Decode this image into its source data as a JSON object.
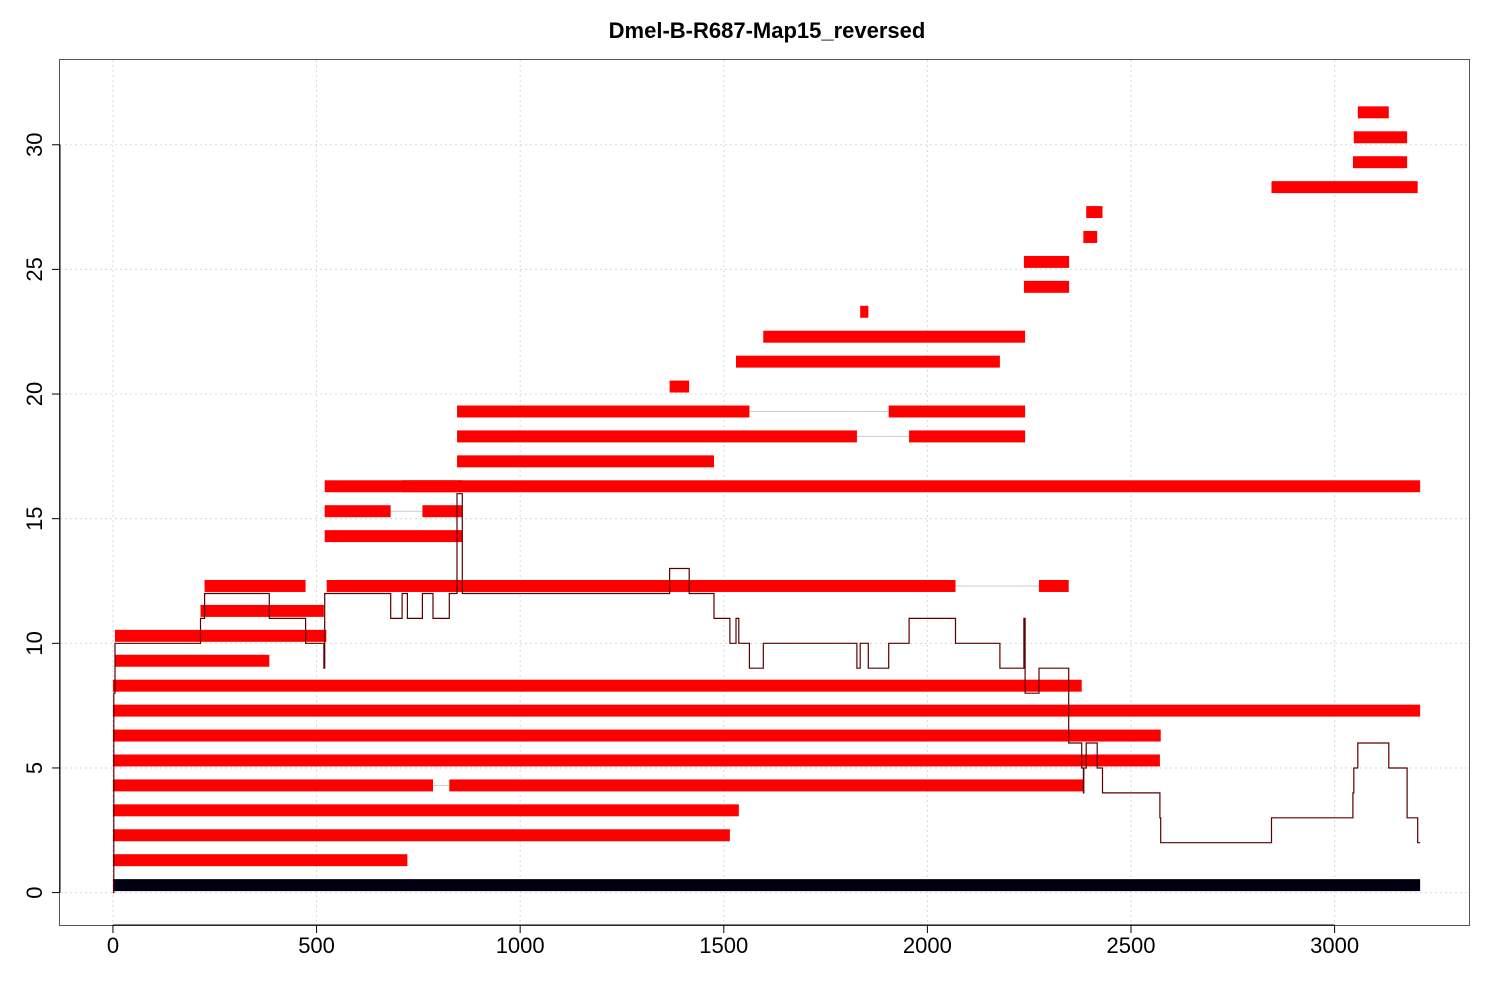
{
  "chart_data": {
    "type": "bar",
    "title": "Dmel-B-R687-Map15_reversed",
    "xlabel": "",
    "ylabel": "",
    "xlim": [
      -130,
      3330
    ],
    "ylim": [
      -1.3,
      33.4
    ],
    "xticks": [
      0,
      500,
      1000,
      1500,
      2000,
      2500,
      3000
    ],
    "xtick_labels": [
      "0",
      "500",
      "1000",
      "1500",
      "2000",
      "2500",
      "3000"
    ],
    "yticks": [
      0,
      5,
      10,
      15,
      20,
      25,
      30
    ],
    "ytick_labels": [
      "0",
      "5",
      "10",
      "15",
      "20",
      "25",
      "30"
    ],
    "grid": true,
    "colors": {
      "reads": "#ff0000",
      "reference": "#000011",
      "coverage": "#5a0000",
      "gap": "#cccccc"
    },
    "reference": {
      "y": 0.3,
      "start": 0,
      "end": 3210
    },
    "reads": [
      {
        "y": 1.3,
        "segments": [
          [
            0,
            723
          ]
        ]
      },
      {
        "y": 2.3,
        "segments": [
          [
            0,
            1515
          ]
        ]
      },
      {
        "y": 3.3,
        "segments": [
          [
            0,
            1537
          ]
        ]
      },
      {
        "y": 4.3,
        "segments": [
          [
            0,
            786
          ],
          [
            826,
            2384
          ]
        ]
      },
      {
        "y": 5.3,
        "segments": [
          [
            0,
            2571
          ]
        ]
      },
      {
        "y": 6.3,
        "segments": [
          [
            0,
            2573
          ]
        ]
      },
      {
        "y": 7.3,
        "segments": [
          [
            0,
            3210
          ]
        ]
      },
      {
        "y": 8.3,
        "segments": [
          [
            0,
            2379
          ]
        ]
      },
      {
        "y": 9.3,
        "segments": [
          [
            5,
            384
          ]
        ]
      },
      {
        "y": 10.3,
        "segments": [
          [
            5,
            524
          ]
        ]
      },
      {
        "y": 11.3,
        "segments": [
          [
            215,
            518
          ]
        ]
      },
      {
        "y": 12.3,
        "segments": [
          [
            225,
            473
          ]
        ]
      },
      {
        "y": 12.3,
        "segments": [
          [
            525,
            2069
          ],
          [
            2274,
            2347
          ]
        ]
      },
      {
        "y": 14.3,
        "segments": [
          [
            520,
            858
          ]
        ]
      },
      {
        "y": 15.3,
        "segments": [
          [
            520,
            682
          ],
          [
            760,
            858
          ]
        ]
      },
      {
        "y": 16.3,
        "segments": [
          [
            520,
            858
          ]
        ]
      },
      {
        "y": 16.3,
        "segments": [
          [
            710,
            3210
          ]
        ]
      },
      {
        "y": 17.3,
        "segments": [
          [
            845,
            1476
          ]
        ]
      },
      {
        "y": 18.3,
        "segments": [
          [
            845,
            1827
          ],
          [
            1955,
            2240
          ]
        ]
      },
      {
        "y": 19.3,
        "segments": [
          [
            845,
            1563
          ],
          [
            1905,
            2240
          ]
        ]
      },
      {
        "y": 20.3,
        "segments": [
          [
            1367,
            1415
          ]
        ]
      },
      {
        "y": 21.3,
        "segments": [
          [
            1530,
            2178
          ]
        ]
      },
      {
        "y": 22.3,
        "segments": [
          [
            1597,
            2240
          ]
        ]
      },
      {
        "y": 23.3,
        "segments": [
          [
            1835,
            1855
          ]
        ]
      },
      {
        "y": 24.3,
        "segments": [
          [
            2237,
            2348
          ]
        ]
      },
      {
        "y": 25.3,
        "segments": [
          [
            2237,
            2348
          ]
        ]
      },
      {
        "y": 26.3,
        "segments": [
          [
            2383,
            2417
          ]
        ]
      },
      {
        "y": 27.3,
        "segments": [
          [
            2390,
            2430
          ]
        ]
      },
      {
        "y": 28.3,
        "segments": [
          [
            2845,
            3204
          ]
        ]
      },
      {
        "y": 29.3,
        "segments": [
          [
            3045,
            3178
          ]
        ]
      },
      {
        "y": 30.3,
        "segments": [
          [
            3047,
            3178
          ]
        ]
      },
      {
        "y": 31.3,
        "segments": [
          [
            3057,
            3133
          ]
        ]
      }
    ],
    "coverage": {
      "x": [
        0,
        2,
        2,
        5,
        5,
        215,
        215,
        225,
        225,
        384,
        384,
        473,
        473,
        518,
        518,
        520,
        520,
        525,
        525,
        682,
        682,
        710,
        710,
        723,
        723,
        760,
        760,
        786,
        786,
        826,
        826,
        845,
        845,
        855,
        855,
        858,
        858,
        1367,
        1367,
        1415,
        1415,
        1476,
        1476,
        1515,
        1515,
        1530,
        1530,
        1537,
        1537,
        1563,
        1563,
        1597,
        1597,
        1827,
        1827,
        1835,
        1835,
        1855,
        1855,
        1905,
        1905,
        1955,
        1955,
        2069,
        2069,
        2178,
        2178,
        2237,
        2237,
        2240,
        2240,
        2274,
        2274,
        2347,
        2347,
        2348,
        2348,
        2379,
        2379,
        2383,
        2383,
        2384,
        2384,
        2390,
        2390,
        2417,
        2417,
        2430,
        2430,
        2571,
        2571,
        2573,
        2573,
        2845,
        2845,
        3045,
        3045,
        3047,
        3047,
        3057,
        3057,
        3133,
        3133,
        3178,
        3178,
        3204,
        3204,
        3210
      ],
      "y": [
        0,
        0,
        8,
        8,
        10,
        10,
        11,
        11,
        12,
        12,
        11,
        11,
        10,
        10,
        9,
        9,
        12,
        12,
        12,
        12,
        11,
        11,
        12,
        12,
        11,
        11,
        12,
        12,
        11,
        11,
        12,
        12,
        16,
        16,
        16,
        16,
        12,
        12,
        13,
        13,
        12,
        12,
        11,
        11,
        10,
        10,
        11,
        11,
        10,
        10,
        9,
        9,
        10,
        10,
        9,
        9,
        10,
        10,
        9,
        9,
        10,
        10,
        11,
        11,
        10,
        10,
        9,
        9,
        11,
        11,
        8,
        8,
        9,
        9,
        6,
        6,
        6,
        6,
        5,
        5,
        4,
        4,
        5,
        5,
        6,
        6,
        5,
        5,
        4,
        4,
        3,
        3,
        2,
        2,
        3,
        3,
        4,
        4,
        5,
        5,
        6,
        6,
        5,
        5,
        3,
        3,
        2,
        2
      ]
    }
  }
}
